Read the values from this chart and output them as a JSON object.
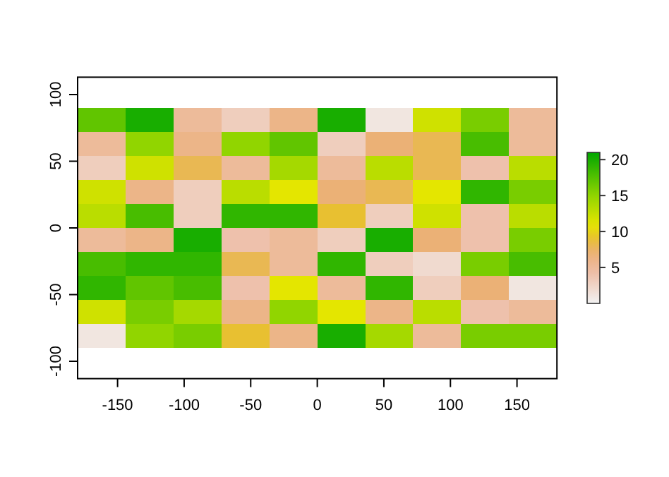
{
  "chart_data": {
    "type": "heatmap",
    "x": [
      -162,
      -126,
      -90,
      -54,
      -18,
      18,
      54,
      90,
      126,
      162
    ],
    "y": [
      81,
      63,
      45,
      27,
      9,
      -9,
      -27,
      -45,
      -63,
      -81
    ],
    "cells": [
      [
        17,
        20,
        5,
        3,
        6,
        20,
        1,
        12,
        16,
        5
      ],
      [
        5,
        15,
        6,
        15,
        17,
        3,
        7,
        8,
        18,
        5
      ],
      [
        3,
        12,
        8,
        5,
        14,
        5,
        13,
        8,
        4,
        13
      ],
      [
        12,
        6,
        3,
        13,
        11,
        7,
        8,
        11,
        19,
        16
      ],
      [
        13,
        18,
        3,
        19,
        19,
        9,
        3,
        12,
        4,
        13
      ],
      [
        5,
        6,
        20,
        4,
        5,
        3,
        20,
        7,
        4,
        16
      ],
      [
        18,
        19,
        19,
        8,
        5,
        19,
        3,
        2,
        16,
        18
      ],
      [
        19,
        17,
        18,
        4,
        11,
        5,
        19,
        3,
        7,
        1
      ],
      [
        12,
        16,
        14,
        6,
        15,
        11,
        6,
        13,
        4,
        5
      ],
      [
        1,
        15,
        16,
        9,
        6,
        20,
        14,
        5,
        16,
        16
      ]
    ],
    "xlim": [
      -180,
      180
    ],
    "xticks": [
      -150,
      -100,
      -50,
      0,
      50,
      100,
      150
    ],
    "ylim": [
      -113,
      113
    ],
    "yticks": [
      -100,
      -50,
      0,
      50,
      100
    ],
    "clim": [
      0,
      21
    ],
    "cticks": [
      5,
      10,
      15,
      20
    ]
  }
}
